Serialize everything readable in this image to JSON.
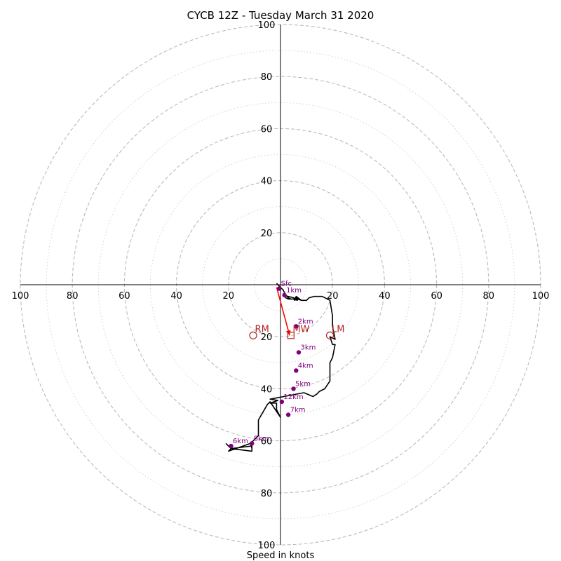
{
  "chart_data": {
    "type": "hodograph",
    "title": "CYCB 12Z - Tuesday March 31 2020",
    "xlabel": "Speed in knots",
    "range": [
      -100,
      100
    ],
    "ring_major": [
      20,
      40,
      60,
      80,
      100
    ],
    "ring_minor": [
      10,
      30,
      50,
      70,
      90
    ],
    "tick_labels": [
      "20",
      "40",
      "60",
      "80",
      "100"
    ],
    "hodograph_trace": [
      [
        -1.5,
        0.5
      ],
      [
        1,
        -2
      ],
      [
        2,
        -4
      ],
      [
        3,
        -5
      ],
      [
        4,
        -5.5
      ],
      [
        5,
        -5.5
      ],
      [
        6.5,
        -6
      ],
      [
        6,
        -5
      ],
      [
        8,
        -6
      ],
      [
        6,
        -4.5
      ],
      [
        5.5,
        -6
      ],
      [
        5,
        -5.5
      ],
      [
        3,
        -5.5
      ],
      [
        2,
        -5
      ],
      [
        1,
        -4
      ],
      [
        5,
        -5
      ],
      [
        8,
        -6
      ],
      [
        10,
        -6
      ],
      [
        11,
        -5
      ],
      [
        13,
        -4.5
      ],
      [
        16,
        -4.5
      ],
      [
        19,
        -6
      ],
      [
        20,
        -12
      ],
      [
        20,
        -16
      ],
      [
        21,
        -21
      ],
      [
        19,
        -20
      ],
      [
        20,
        -23
      ],
      [
        21,
        -23
      ],
      [
        20,
        -28
      ],
      [
        19,
        -30
      ],
      [
        19,
        -34
      ],
      [
        19,
        -37
      ],
      [
        17,
        -40
      ],
      [
        15,
        -41
      ],
      [
        14,
        -42
      ],
      [
        12.5,
        -43
      ],
      [
        9,
        -41.5
      ],
      [
        -4,
        -44
      ],
      [
        -1,
        -44.5
      ],
      [
        -4,
        -45.5
      ],
      [
        -1.5,
        -45.5
      ],
      [
        -1.5,
        -48
      ],
      [
        0,
        -51
      ],
      [
        -4,
        -45
      ],
      [
        -4,
        -45
      ],
      [
        -5,
        -46
      ],
      [
        -8.5,
        -52
      ],
      [
        -8.5,
        -58
      ],
      [
        -11.5,
        -61
      ],
      [
        -11,
        -62
      ],
      [
        -11,
        -63
      ],
      [
        -11.5,
        -61
      ],
      [
        -10.5,
        -60
      ],
      [
        -11.5,
        -61
      ],
      [
        -11,
        -62
      ],
      [
        -11,
        -64
      ],
      [
        -19,
        -63
      ],
      [
        -20,
        -64
      ],
      [
        -11.5,
        -61
      ],
      [
        -11,
        -62
      ],
      [
        -19,
        -63
      ],
      [
        -21,
        -61
      ]
    ],
    "height_markers": [
      {
        "label": "Sfc",
        "u": -0.5,
        "v": -1.5
      },
      {
        "label": "1km",
        "u": 1.5,
        "v": -4
      },
      {
        "label": "2km",
        "u": 6,
        "v": -16
      },
      {
        "label": "3km",
        "u": 7,
        "v": -26
      },
      {
        "label": "4km",
        "u": 6,
        "v": -33
      },
      {
        "label": "5km",
        "u": 5,
        "v": -40
      },
      {
        "label": "12km",
        "u": 0.5,
        "v": -45
      },
      {
        "label": "7km",
        "u": 3,
        "v": -50
      },
      {
        "label": "8km",
        "u": -11,
        "v": -61
      },
      {
        "label": "6km",
        "u": -19,
        "v": -62
      }
    ],
    "storm_motion": [
      {
        "label": "RM",
        "u": -10.5,
        "v": -19.5,
        "marker": "circle"
      },
      {
        "label": "MW",
        "u": 4,
        "v": -19.5,
        "marker": "square"
      },
      {
        "label": "LM",
        "u": 19,
        "v": -19.5,
        "marker": "circle"
      }
    ],
    "arrow": {
      "from": [
        -1.5,
        -1
      ],
      "to": [
        3.5,
        -19.5
      ],
      "color": "#ff0000"
    },
    "colors": {
      "trace": "#000000",
      "markers": "#800080",
      "storm": "#b22222",
      "arrow": "#ff0000",
      "ring_major": "#bbbbbb",
      "ring_minor": "#d3d3d3"
    }
  }
}
